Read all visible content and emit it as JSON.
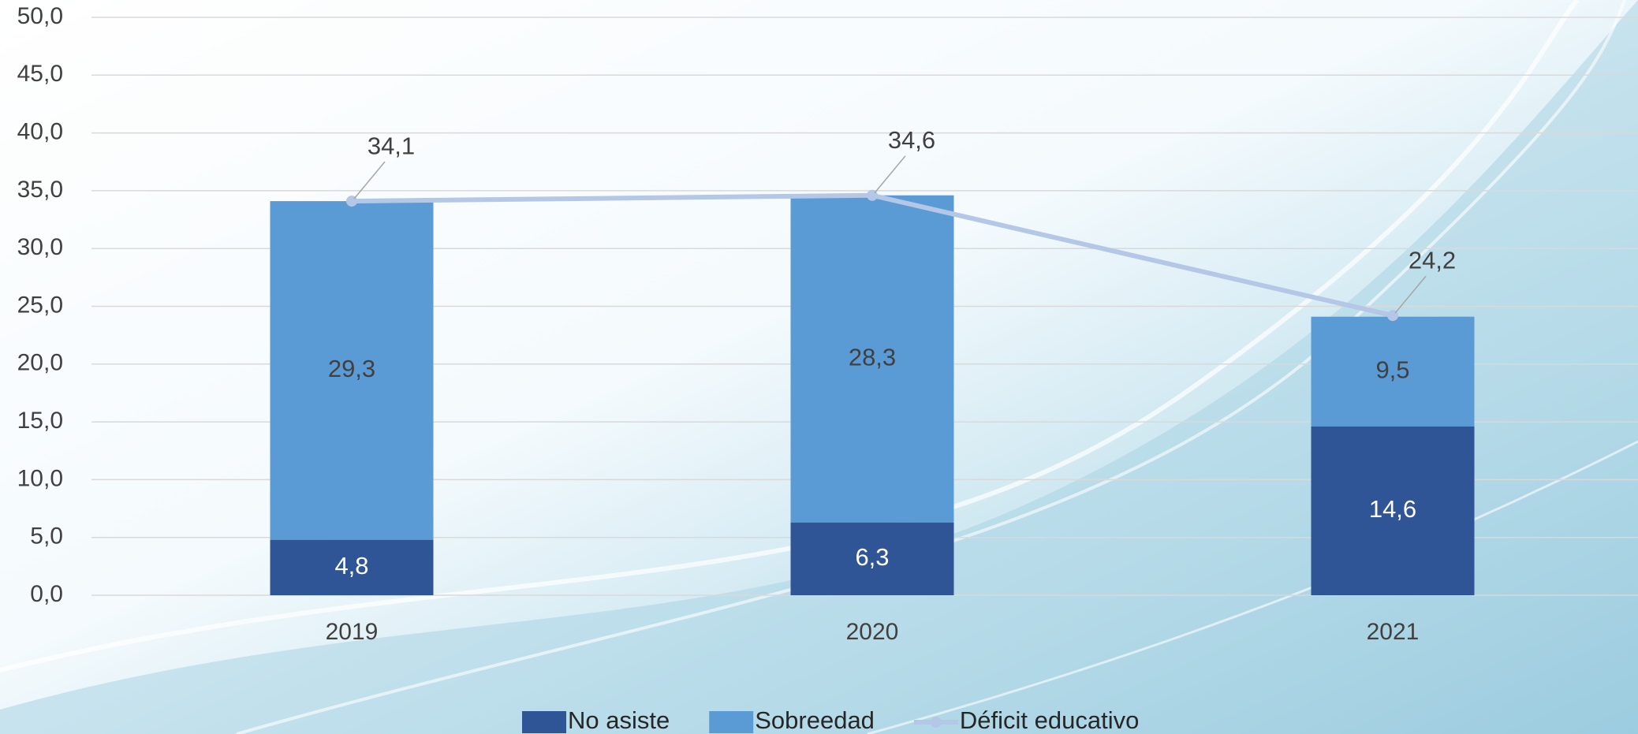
{
  "chart_data": {
    "type": "bar",
    "categories": [
      "2019",
      "2020",
      "2021"
    ],
    "series": [
      {
        "name": "No asiste",
        "type": "bar",
        "color": "#2f5597",
        "values": [
          4.8,
          6.3,
          14.6
        ],
        "value_labels": [
          "4,8",
          "6,3",
          "14,6"
        ]
      },
      {
        "name": "Sobreedad",
        "type": "bar",
        "color": "#5b9bd5",
        "values": [
          29.3,
          28.3,
          9.5
        ],
        "value_labels": [
          "29,3",
          "28,3",
          "9,5"
        ]
      },
      {
        "name": "Déficit educativo",
        "type": "line",
        "color": "#b4c7e7",
        "values": [
          34.1,
          34.6,
          24.2
        ],
        "value_labels": [
          "34,1",
          "34,6",
          "24,2"
        ]
      }
    ],
    "stacked": true,
    "ylim": [
      0,
      50
    ],
    "yticks": [
      {
        "value": 0,
        "label": "0,0"
      },
      {
        "value": 5,
        "label": "5,0"
      },
      {
        "value": 10,
        "label": "10,0"
      },
      {
        "value": 15,
        "label": "15,0"
      },
      {
        "value": 20,
        "label": "20,0"
      },
      {
        "value": 25,
        "label": "25,0"
      },
      {
        "value": 30,
        "label": "30,0"
      },
      {
        "value": 35,
        "label": "35,0"
      },
      {
        "value": 40,
        "label": "40,0"
      },
      {
        "value": 45,
        "label": "45,0"
      },
      {
        "value": 50,
        "label": "50,0"
      }
    ],
    "grid": true,
    "legend": "bottom"
  }
}
